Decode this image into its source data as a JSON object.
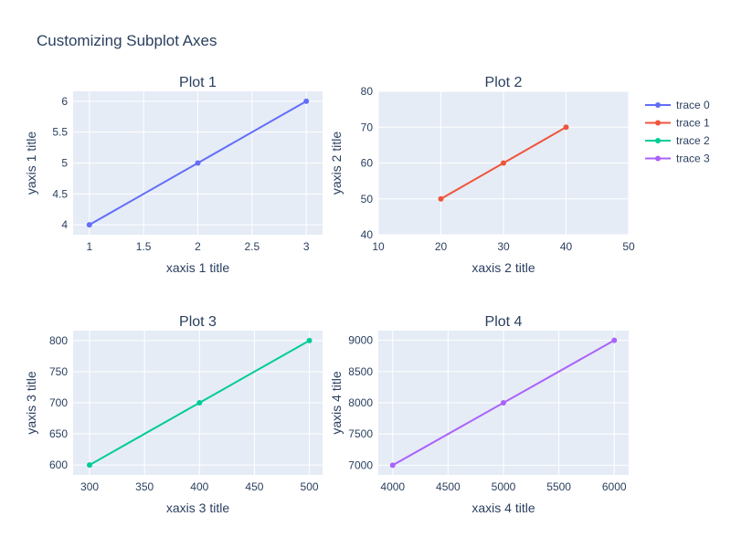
{
  "title": "Customizing Subplot Axes",
  "colors": {
    "plot_bg": "#e5ecf6",
    "grid": "#ffffff",
    "text": "#2a3f5f",
    "tick_text": "#2a3f5f"
  },
  "chart_data": [
    {
      "type": "line",
      "title": "Plot 1",
      "xlabel": "xaxis 1 title",
      "ylabel": "yaxis 1 title",
      "series": [
        {
          "name": "trace 0",
          "x": [
            1,
            2,
            3
          ],
          "y": [
            4,
            5,
            6
          ],
          "color": "#636efa"
        }
      ],
      "xlim": [
        0.85,
        3.15
      ],
      "ylim": [
        3.84,
        6.16
      ],
      "xticks": [
        1,
        1.5,
        2,
        2.5,
        3
      ],
      "yticks": [
        4,
        4.5,
        5,
        5.5,
        6
      ],
      "grid": true
    },
    {
      "type": "line",
      "title": "Plot 2",
      "xlabel": "xaxis 2 title",
      "ylabel": "yaxis 2 title",
      "series": [
        {
          "name": "trace 1",
          "x": [
            20,
            30,
            40
          ],
          "y": [
            50,
            60,
            70
          ],
          "color": "#ef553b"
        }
      ],
      "xlim": [
        10,
        50
      ],
      "ylim": [
        40,
        80
      ],
      "xticks": [
        10,
        20,
        30,
        40,
        50
      ],
      "yticks": [
        40,
        50,
        60,
        70,
        80
      ],
      "grid": true
    },
    {
      "type": "line",
      "title": "Plot 3",
      "xlabel": "xaxis 3 title",
      "ylabel": "yaxis 3 title",
      "series": [
        {
          "name": "trace 2",
          "x": [
            300,
            400,
            500
          ],
          "y": [
            600,
            700,
            800
          ],
          "color": "#00cc96"
        }
      ],
      "xlim": [
        285,
        512
      ],
      "ylim": [
        584,
        816
      ],
      "xticks": [
        300,
        350,
        400,
        450,
        500
      ],
      "yticks": [
        600,
        650,
        700,
        750,
        800
      ],
      "grid": true
    },
    {
      "type": "line",
      "title": "Plot 4",
      "xlabel": "xaxis 4 title",
      "ylabel": "yaxis 4 title",
      "series": [
        {
          "name": "trace 3",
          "x": [
            4000,
            5000,
            6000
          ],
          "y": [
            7000,
            8000,
            9000
          ],
          "color": "#ab63fa"
        }
      ],
      "xlim": [
        3870,
        6130
      ],
      "ylim": [
        6845,
        9155
      ],
      "xticks": [
        4000,
        4500,
        5000,
        5500,
        6000
      ],
      "yticks": [
        7000,
        7500,
        8000,
        8500,
        9000
      ],
      "grid": true
    }
  ],
  "legend": {
    "placement": "top-right",
    "items": [
      {
        "name": "trace 0",
        "color": "#636efa"
      },
      {
        "name": "trace 1",
        "color": "#ef553b"
      },
      {
        "name": "trace 2",
        "color": "#00cc96"
      },
      {
        "name": "trace 3",
        "color": "#ab63fa"
      }
    ]
  }
}
